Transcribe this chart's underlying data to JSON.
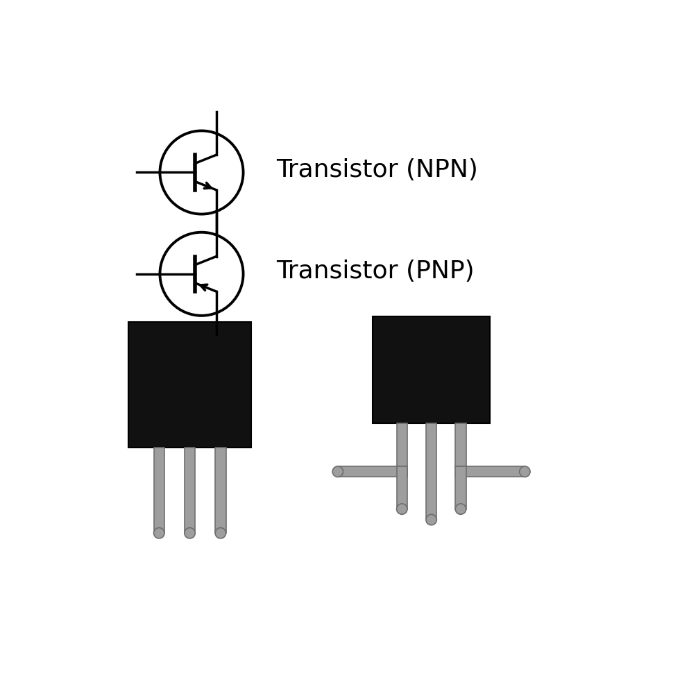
{
  "bg_color": "#ffffff",
  "line_color": "#000000",
  "text_color": "#000000",
  "gray_color": "#9e9e9e",
  "gray_edge": "#6e6e6e",
  "black_color": "#111111",
  "npn_label": "Transistor (NPN)",
  "pnp_label": "Transistor (PNP)",
  "label_fontsize": 26,
  "circle_lw": 2.8,
  "symbol_lw": 2.5,
  "bar_lw": 4.0
}
